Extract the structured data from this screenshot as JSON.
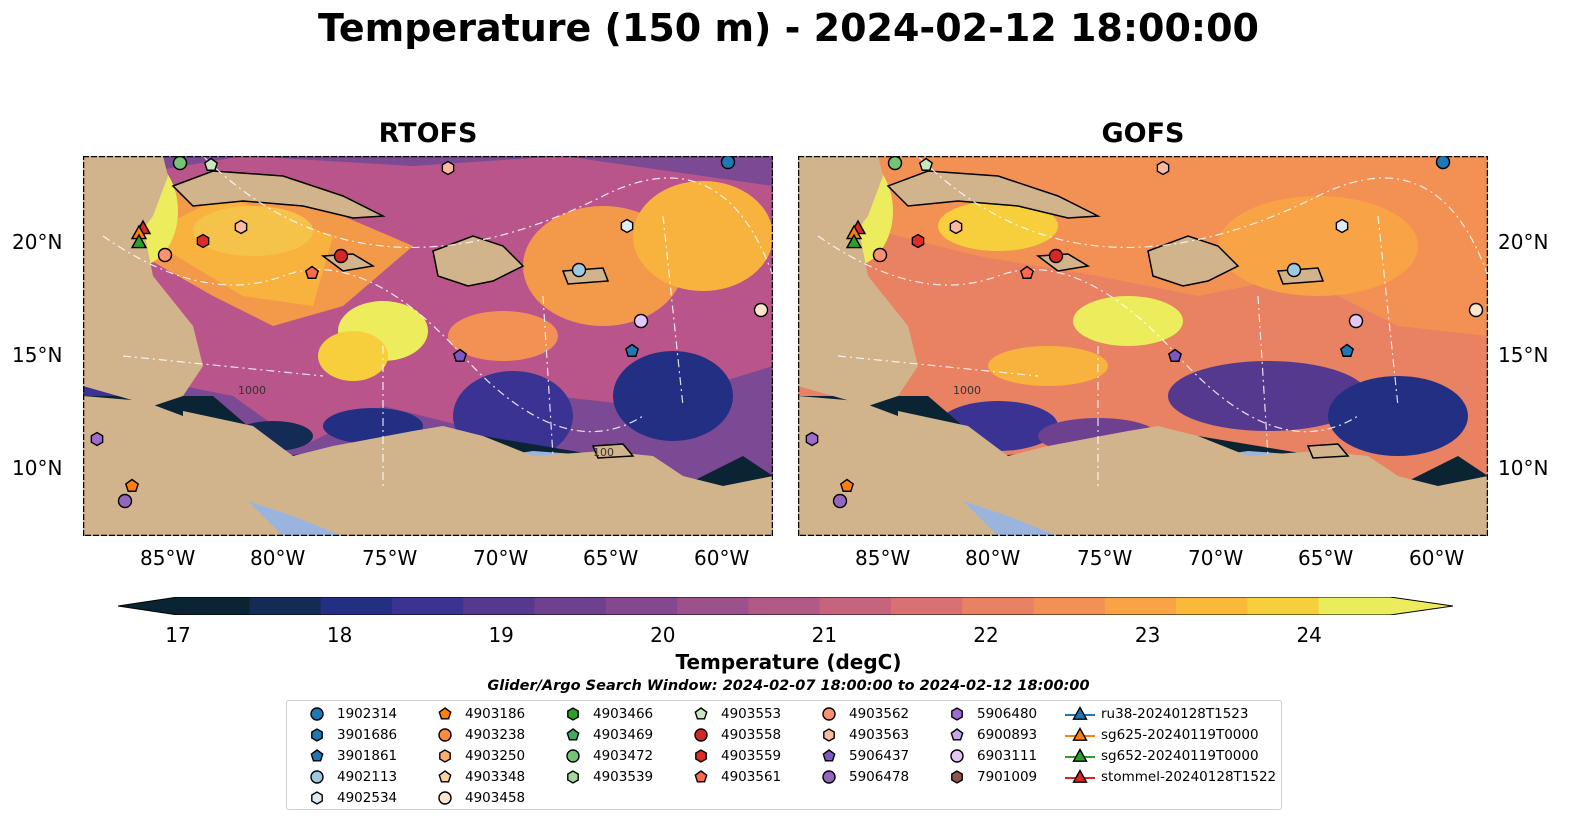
{
  "title": "Temperature (150 m) - 2024-02-12 18:00:00",
  "panels": [
    {
      "title": "RTOFS"
    },
    {
      "title": "GOFS"
    }
  ],
  "axes": {
    "lat_labels": [
      "20°N",
      "15°N",
      "10°N"
    ],
    "lon_labels": [
      "85°W",
      "80°W",
      "75°W",
      "70°W",
      "65°W",
      "60°W"
    ]
  },
  "contour_labels": [
    "1000",
    "1000",
    "100"
  ],
  "colorbar": {
    "label": "Temperature (degC)",
    "ticks": [
      "17",
      "18",
      "19",
      "20",
      "21",
      "22",
      "23",
      "24"
    ],
    "range": [
      17,
      24.5
    ],
    "extend": "both",
    "colormap": [
      "#0b2433",
      "#142b55",
      "#222f83",
      "#3a3393",
      "#55398f",
      "#6e4090",
      "#85478f",
      "#9c508c",
      "#b25a86",
      "#c7647d",
      "#d97072",
      "#e98163",
      "#f39154",
      "#f8a346",
      "#fbb93c",
      "#f7cf3d",
      "#e9ed59"
    ]
  },
  "search_window": "Glider/Argo Search Window: 2024-02-07 18:00:00 to 2024-02-12 18:00:00",
  "legend": {
    "columns": [
      [
        {
          "label": "1902314",
          "marker": "circle",
          "color": "#1f77b4"
        },
        {
          "label": "3901686",
          "marker": "hexagon",
          "color": "#1f77b4"
        },
        {
          "label": "3901861",
          "marker": "pentagon",
          "color": "#1f77b4"
        },
        {
          "label": "4902113",
          "marker": "circle",
          "color": "#9ecae1"
        },
        {
          "label": "4902534",
          "marker": "hexagon",
          "color": "#deebf7"
        }
      ],
      [
        {
          "label": "4903186",
          "marker": "pentagon",
          "color": "#ff7f0e"
        },
        {
          "label": "4903238",
          "marker": "circle",
          "color": "#fd8d3c"
        },
        {
          "label": "4903250",
          "marker": "hexagon",
          "color": "#fdae6b"
        },
        {
          "label": "4903348",
          "marker": "pentagon",
          "color": "#fdd0a2"
        },
        {
          "label": "4903458",
          "marker": "circle",
          "color": "#fee6ce"
        }
      ],
      [
        {
          "label": "4903466",
          "marker": "hexagon",
          "color": "#2ca02c"
        },
        {
          "label": "4903469",
          "marker": "pentagon",
          "color": "#41ab5d"
        },
        {
          "label": "4903472",
          "marker": "circle",
          "color": "#74c476"
        },
        {
          "label": "4903539",
          "marker": "hexagon",
          "color": "#a1d99b"
        }
      ],
      [
        {
          "label": "4903553",
          "marker": "pentagon",
          "color": "#c7e9c0"
        },
        {
          "label": "4903558",
          "marker": "circle",
          "color": "#d62728"
        },
        {
          "label": "4903559",
          "marker": "hexagon",
          "color": "#de2d26"
        },
        {
          "label": "4903561",
          "marker": "pentagon",
          "color": "#fb6a4a"
        }
      ],
      [
        {
          "label": "4903562",
          "marker": "circle",
          "color": "#fc9272"
        },
        {
          "label": "4903563",
          "marker": "hexagon",
          "color": "#fcbba1"
        },
        {
          "label": "5906437",
          "marker": "pentagon",
          "color": "#7e57c2"
        },
        {
          "label": "5906478",
          "marker": "circle",
          "color": "#9467bd"
        }
      ],
      [
        {
          "label": "5906480",
          "marker": "hexagon",
          "color": "#9e6bd0"
        },
        {
          "label": "6900893",
          "marker": "pentagon",
          "color": "#c5a8e8"
        },
        {
          "label": "6903111",
          "marker": "circle",
          "color": "#e3c7f5"
        },
        {
          "label": "7901009",
          "marker": "hexagon",
          "color": "#8c564b"
        }
      ],
      [
        {
          "label": "ru38-20240128T1523",
          "marker": "triangle-line",
          "color": "#1f77b4"
        },
        {
          "label": "sg625-20240119T0000",
          "marker": "triangle-line",
          "color": "#ff7f0e"
        },
        {
          "label": "sg652-20240119T0000",
          "marker": "triangle-line",
          "color": "#2ca02c"
        },
        {
          "label": "stommel-20240128T1522",
          "marker": "triangle-line",
          "color": "#d62728"
        }
      ]
    ]
  }
}
